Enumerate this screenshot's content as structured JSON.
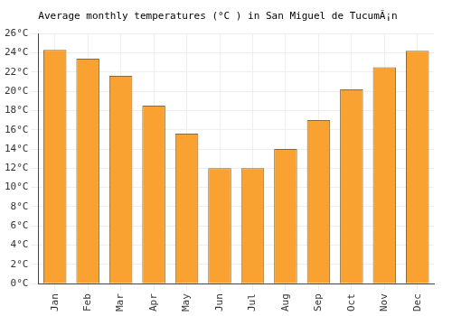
{
  "chart_data": {
    "type": "bar",
    "title": "Average monthly temperatures (°C ) in San Miguel de TucumÃ¡n",
    "categories": [
      "Jan",
      "Feb",
      "Mar",
      "Apr",
      "May",
      "Jun",
      "Jul",
      "Aug",
      "Sep",
      "Oct",
      "Nov",
      "Dec"
    ],
    "values": [
      24.3,
      23.4,
      21.6,
      18.5,
      15.6,
      12.0,
      12.0,
      14.0,
      17.0,
      20.2,
      22.5,
      24.2
    ],
    "color": "#f9a232",
    "ylim": [
      0,
      26
    ],
    "yticks": [
      {
        "value": 0,
        "label": "0°C"
      },
      {
        "value": 2,
        "label": "2°C"
      },
      {
        "value": 4,
        "label": "4°C"
      },
      {
        "value": 6,
        "label": "6°C"
      },
      {
        "value": 8,
        "label": "8°C"
      },
      {
        "value": 10,
        "label": "10°C"
      },
      {
        "value": 12,
        "label": "12°C"
      },
      {
        "value": 14,
        "label": "14°C"
      },
      {
        "value": 16,
        "label": "16°C"
      },
      {
        "value": 18,
        "label": "18°C"
      },
      {
        "value": 20,
        "label": "20°C"
      },
      {
        "value": 22,
        "label": "22°C"
      },
      {
        "value": 24,
        "label": "24°C"
      },
      {
        "value": 26,
        "label": "26°C"
      }
    ],
    "grid": true
  }
}
